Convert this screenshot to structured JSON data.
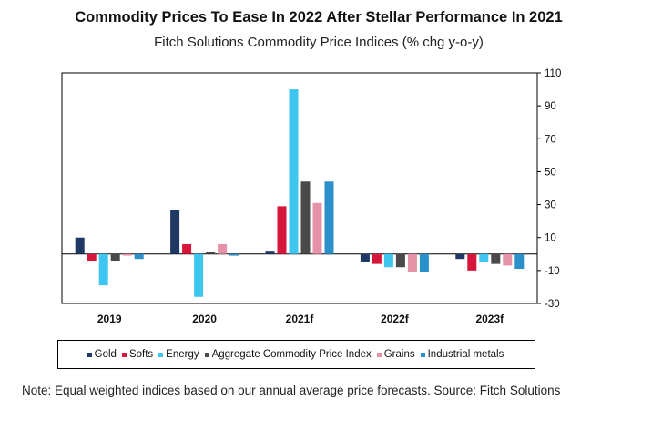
{
  "title": "Commodity Prices To Ease In 2022 After Stellar Performance In 2021",
  "subtitle": "Fitch Solutions Commodity Price Indices (% chg y-o-y)",
  "note": "Note: Equal weighted indices based on our annual average price forecasts. Source: Fitch Solutions",
  "chart_data": {
    "type": "bar",
    "title": "Commodity Prices To Ease In 2022 After Stellar Performance In 2021",
    "subtitle": "Fitch Solutions Commodity Price Indices (% chg y-o-y)",
    "categories": [
      "2019",
      "2020",
      "2021f",
      "2022f",
      "2023f"
    ],
    "y_ticks": [
      110,
      90,
      70,
      50,
      30,
      10,
      -10,
      -30
    ],
    "ylim": [
      -30,
      110
    ],
    "y_axis_side": "right",
    "grid": false,
    "legend_position": "bottom",
    "series": [
      {
        "name": "Gold",
        "color": "#1f3864",
        "values": [
          10,
          27,
          2,
          -5,
          -3
        ]
      },
      {
        "name": "Softs",
        "color": "#d6163a",
        "values": [
          -4,
          6,
          29,
          -6,
          -10
        ]
      },
      {
        "name": "Energy",
        "color": "#3ec6f0",
        "values": [
          -19,
          -26,
          100,
          -8,
          -5
        ]
      },
      {
        "name": "Aggregate Commodity Price Index",
        "color": "#4a4a4a",
        "values": [
          -4,
          1,
          44,
          -8,
          -6
        ]
      },
      {
        "name": "Grains",
        "color": "#e591a8",
        "values": [
          -1,
          6,
          31,
          -11,
          -7
        ]
      },
      {
        "name": "Industrial metals",
        "color": "#2b8fc9",
        "values": [
          -3,
          -1,
          44,
          -11,
          -9
        ]
      }
    ]
  }
}
